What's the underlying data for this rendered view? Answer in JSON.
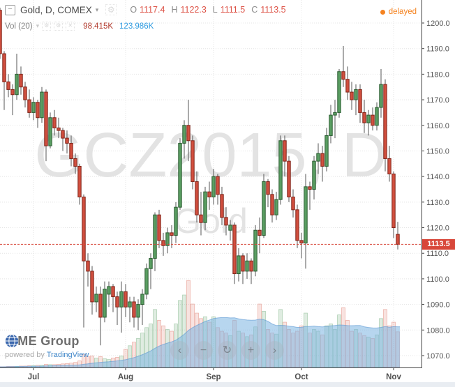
{
  "header": {
    "collapse_glyph": "−",
    "title": "Gold, D, COMEX",
    "caret_glyph": "▾",
    "settings_glyph": "⚙",
    "ohlc": {
      "o_label": "O",
      "o": "1117.4",
      "h_label": "H",
      "h": "1122.3",
      "l_label": "L",
      "l": "1111.5",
      "c_label": "C",
      "c": "1113.5"
    },
    "delayed_label": "delayed"
  },
  "indicator": {
    "label": "Vol (20)",
    "caret_glyph": "▾",
    "icons": [
      {
        "name": "settings-icon",
        "glyph": "⚙"
      },
      {
        "name": "source-icon",
        "glyph": "⚙"
      },
      {
        "name": "remove-icon",
        "glyph": "✕"
      }
    ],
    "volume_value": "98.415K",
    "ma_value": "123.986K"
  },
  "watermark": {
    "line1": "GCZ2015, D",
    "line2": "Gold"
  },
  "nav": {
    "buttons": [
      {
        "name": "scroll-left-button",
        "glyph": "‹"
      },
      {
        "name": "zoom-out-button",
        "glyph": "−"
      },
      {
        "name": "reset-view-button",
        "glyph": "↻"
      },
      {
        "name": "zoom-in-button",
        "glyph": "+"
      },
      {
        "name": "scroll-right-button",
        "glyph": "›"
      }
    ]
  },
  "branding": {
    "logo_text": "CME Group",
    "powered_by": "powered by",
    "powered_link": "TradingView"
  },
  "colors": {
    "candle_up_fill": "#5a9e62",
    "candle_up_border": "#2a5c31",
    "candle_down_fill": "#d14f3f",
    "candle_down_border": "#7f2318",
    "wick": "#555555",
    "volume_up": "rgba(110,170,120,0.22)",
    "volume_up_border": "rgba(110,170,120,0.5)",
    "volume_down": "rgba(209,79,63,0.16)",
    "volume_down_border": "rgba(209,79,63,0.4)",
    "volume_ma_fill": "rgba(124,181,226,0.55)",
    "volume_ma_edge": "rgba(90,150,210,0.6)",
    "last_price": "#d8473a",
    "delayed": "#f58320",
    "grid": "#e4e4e4",
    "axis_line": "#444444"
  },
  "chart_data": {
    "type": "candlestick",
    "symbol": "GCZ2015",
    "description": "Gold, D, COMEX",
    "interval": "D",
    "last_price": 1113.5,
    "last_price_label": "1113.5",
    "volume_indicator": {
      "name": "Vol",
      "period": 20,
      "volume_k": 98.415,
      "ma_k": 123.986
    },
    "price_axis": {
      "ylim": [
        1065,
        1209
      ],
      "ticks": [
        {
          "v": 1200,
          "label": "1200.0"
        },
        {
          "v": 1190,
          "label": "1190.0"
        },
        {
          "v": 1180,
          "label": "1180.0"
        },
        {
          "v": 1170,
          "label": "1170.0"
        },
        {
          "v": 1160,
          "label": "1160.0"
        },
        {
          "v": 1150,
          "label": "1150.0"
        },
        {
          "v": 1140,
          "label": "1140.0"
        },
        {
          "v": 1130,
          "label": "1130.0"
        },
        {
          "v": 1120,
          "label": "1120.0"
        },
        {
          "v": 1110,
          "label": "1110.0"
        },
        {
          "v": 1100,
          "label": "1100.0"
        },
        {
          "v": 1090,
          "label": "1090.0"
        },
        {
          "v": 1080,
          "label": "1080.0"
        },
        {
          "v": 1070,
          "label": "1070.0"
        }
      ]
    },
    "time_axis": {
      "months": [
        {
          "label": "Jul",
          "bar": 8
        },
        {
          "label": "Aug",
          "bar": 30
        },
        {
          "label": "Sep",
          "bar": 51
        },
        {
          "label": "Oct",
          "bar": 72
        },
        {
          "label": "Nov",
          "bar": 94
        }
      ]
    },
    "candles": [
      [
        1205,
        1206,
        1186,
        1188
      ],
      [
        1188,
        1189,
        1166,
        1177
      ],
      [
        1177,
        1180,
        1171,
        1174
      ],
      [
        1174,
        1176,
        1164,
        1172
      ],
      [
        1172,
        1188,
        1170,
        1180
      ],
      [
        1180,
        1183,
        1172,
        1175
      ],
      [
        1175,
        1177,
        1167,
        1170
      ],
      [
        1170,
        1174,
        1163,
        1165
      ],
      [
        1165,
        1171,
        1162,
        1169
      ],
      [
        1169,
        1170,
        1159,
        1163
      ],
      [
        1163,
        1175,
        1161,
        1173
      ],
      [
        1173,
        1174,
        1146,
        1152
      ],
      [
        1152,
        1165,
        1151,
        1163
      ],
      [
        1163,
        1166,
        1156,
        1159
      ],
      [
        1159,
        1163,
        1155,
        1158
      ],
      [
        1158,
        1159,
        1150,
        1155
      ],
      [
        1155,
        1158,
        1149,
        1153
      ],
      [
        1153,
        1156,
        1144,
        1147
      ],
      [
        1147,
        1149,
        1141,
        1144
      ],
      [
        1144,
        1145,
        1129,
        1132
      ],
      [
        1132,
        1133,
        1081,
        1107
      ],
      [
        1107,
        1110,
        1097,
        1103
      ],
      [
        1103,
        1105,
        1086,
        1091
      ],
      [
        1091,
        1097,
        1087,
        1094
      ],
      [
        1094,
        1097,
        1074,
        1085
      ],
      [
        1085,
        1099,
        1083,
        1096
      ],
      [
        1094,
        1099,
        1089,
        1097
      ],
      [
        1097,
        1098,
        1087,
        1093
      ],
      [
        1093,
        1095,
        1082,
        1089
      ],
      [
        1089,
        1099,
        1079,
        1095
      ],
      [
        1095,
        1098,
        1085,
        1089
      ],
      [
        1089,
        1093,
        1083,
        1091
      ],
      [
        1091,
        1093,
        1081,
        1085
      ],
      [
        1085,
        1092,
        1080,
        1090
      ],
      [
        1090,
        1096,
        1082,
        1094
      ],
      [
        1094,
        1106,
        1092,
        1104
      ],
      [
        1104,
        1110,
        1096,
        1108
      ],
      [
        1108,
        1126,
        1103,
        1125
      ],
      [
        1125,
        1127,
        1112,
        1115
      ],
      [
        1115,
        1118,
        1109,
        1113
      ],
      [
        1113,
        1120,
        1110,
        1118
      ],
      [
        1118,
        1121,
        1112,
        1117
      ],
      [
        1117,
        1130,
        1114,
        1128
      ],
      [
        1128,
        1155,
        1127,
        1153
      ],
      [
        1153,
        1162,
        1147,
        1160
      ],
      [
        1160,
        1170,
        1146,
        1154
      ],
      [
        1154,
        1156,
        1135,
        1138
      ],
      [
        1138,
        1142,
        1122,
        1125
      ],
      [
        1125,
        1134,
        1117,
        1122
      ],
      [
        1122,
        1136,
        1119,
        1134
      ],
      [
        1134,
        1138,
        1127,
        1132
      ],
      [
        1132,
        1143,
        1129,
        1140
      ],
      [
        1140,
        1141,
        1129,
        1133
      ],
      [
        1133,
        1136,
        1121,
        1124
      ],
      [
        1124,
        1128,
        1117,
        1121
      ],
      [
        1119,
        1123,
        1115,
        1121
      ],
      [
        1121,
        1122,
        1098,
        1102
      ],
      [
        1102,
        1112,
        1099,
        1109
      ],
      [
        1109,
        1110,
        1098,
        1103
      ],
      [
        1103,
        1110,
        1100,
        1107
      ],
      [
        1107,
        1108,
        1098,
        1103
      ],
      [
        1103,
        1121,
        1101,
        1119
      ],
      [
        1119,
        1124,
        1110,
        1117
      ],
      [
        1117,
        1141,
        1116,
        1138
      ],
      [
        1138,
        1139,
        1128,
        1133
      ],
      [
        1133,
        1135,
        1122,
        1125
      ],
      [
        1125,
        1134,
        1123,
        1131
      ],
      [
        1131,
        1156,
        1129,
        1154
      ],
      [
        1154,
        1156,
        1140,
        1146
      ],
      [
        1146,
        1148,
        1130,
        1132
      ],
      [
        1132,
        1135,
        1124,
        1127
      ],
      [
        1127,
        1129,
        1112,
        1115
      ],
      [
        1115,
        1118,
        1108,
        1114
      ],
      [
        1114,
        1141,
        1104,
        1136
      ],
      [
        1136,
        1138,
        1127,
        1135
      ],
      [
        1135,
        1148,
        1131,
        1146
      ],
      [
        1146,
        1153,
        1141,
        1149
      ],
      [
        1149,
        1152,
        1138,
        1144
      ],
      [
        1144,
        1159,
        1142,
        1156
      ],
      [
        1156,
        1168,
        1153,
        1164
      ],
      [
        1164,
        1170,
        1155,
        1165
      ],
      [
        1165,
        1182,
        1163,
        1181
      ],
      [
        1181,
        1191,
        1175,
        1178
      ],
      [
        1178,
        1183,
        1170,
        1173
      ],
      [
        1173,
        1177,
        1166,
        1170
      ],
      [
        1170,
        1176,
        1164,
        1174
      ],
      [
        1174,
        1176,
        1161,
        1165
      ],
      [
        1165,
        1170,
        1157,
        1161
      ],
      [
        1161,
        1166,
        1156,
        1164
      ],
      [
        1164,
        1167,
        1158,
        1160
      ],
      [
        1160,
        1169,
        1158,
        1167
      ],
      [
        1167,
        1182,
        1163,
        1176
      ],
      [
        1176,
        1178,
        1142,
        1147
      ],
      [
        1147,
        1152,
        1138,
        1141
      ],
      [
        1141,
        1142,
        1116,
        1120
      ],
      [
        1117.4,
        1122.3,
        1111.5,
        1113.5
      ]
    ],
    "volumes_k": [
      2,
      2,
      3,
      3,
      3,
      4,
      4,
      5,
      5,
      6,
      6,
      9,
      8,
      8,
      9,
      10,
      11,
      12,
      14,
      18,
      36,
      30,
      32,
      26,
      30,
      24,
      22,
      26,
      28,
      32,
      50,
      60,
      70,
      80,
      95,
      110,
      120,
      160,
      130,
      115,
      105,
      100,
      120,
      185,
      200,
      240,
      175,
      150,
      135,
      140,
      125,
      140,
      110,
      100,
      95,
      88,
      130,
      100,
      95,
      85,
      90,
      112,
      175,
      155,
      105,
      95,
      92,
      160,
      125,
      105,
      95,
      100,
      115,
      150,
      95,
      105,
      100,
      90,
      115,
      120,
      105,
      145,
      165,
      130,
      100,
      105,
      95,
      88,
      84,
      80,
      90,
      135,
      160,
      115,
      125,
      98.415
    ],
    "volume_ma_period": 20
  }
}
